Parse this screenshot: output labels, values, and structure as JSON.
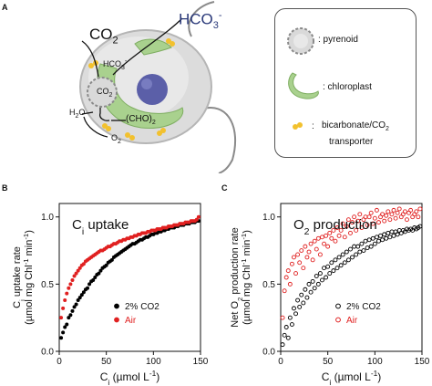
{
  "panel_a": {
    "letter": "A",
    "cell_labels": {
      "co2": "CO",
      "co2_sub": "2",
      "hco3": "HCO",
      "hco3_sub": "3",
      "hco3_sup": "-",
      "hco3_inner": "HCO",
      "hco3_inner_sub": "3",
      "hco3_inner_sup": "-",
      "co2_inner": "CO",
      "co2_inner_sub": "2",
      "h2o": "H",
      "h2o_sub": "2",
      "h2o_tail": "O",
      "cho2": "(CHO)",
      "cho2_sub": "2",
      "o2": "O",
      "o2_sub": "2"
    },
    "legend": {
      "pyrenoid": ": pyrenoid",
      "chloroplast": ": chloroplast",
      "transporter_colon": ":",
      "transporter_line1": "bicarbonate/CO",
      "transporter_sub": "2",
      "transporter_line2": "transporter"
    },
    "colors": {
      "cell": "#cfcfcf",
      "chloroplast": "#a9d18e",
      "nucleus": "#5b5fa8",
      "transporter": "#f2c12e"
    }
  },
  "chart_data": [
    {
      "panel": "B",
      "type": "scatter",
      "title": "C",
      "title_sub": "i",
      "title_tail": " uptake",
      "ylabel_line1": "C",
      "ylabel_sub": "i",
      "ylabel_tail": " uptake rate",
      "ylabel_line2": "(µmol mg Chl",
      "ylabel_line2_sup": "-1",
      "ylabel_line2_mid": " min",
      "ylabel_line2_sup2": "-1",
      "ylabel_line2_end": ")",
      "xlabel": "C",
      "xlabel_sub": "i",
      "xlabel_tail": " (µmol L",
      "xlabel_sup": "-1",
      "xlabel_end": ")",
      "xlim": [
        0,
        150
      ],
      "ylim": [
        0,
        1.1
      ],
      "xticks": [
        "0",
        "50",
        "100",
        "150"
      ],
      "yticks": [
        "0.0",
        "0.5",
        "1.0"
      ],
      "legend": [
        {
          "name": "2% CO2",
          "color": "#000000",
          "marker": "filled"
        },
        {
          "name": "Air",
          "color": "#e02020",
          "marker": "filled"
        }
      ],
      "series": [
        {
          "name": "2% CO2",
          "color": "#000000",
          "marker": "filled",
          "x": [
            2,
            4,
            6,
            8,
            10,
            12,
            14,
            16,
            18,
            20,
            22,
            24,
            26,
            28,
            30,
            32,
            34,
            36,
            38,
            40,
            42,
            44,
            46,
            48,
            50,
            52,
            54,
            56,
            58,
            60,
            62,
            64,
            66,
            68,
            70,
            72,
            74,
            76,
            78,
            80,
            82,
            84,
            86,
            88,
            90,
            92,
            94,
            96,
            98,
            100,
            102,
            104,
            106,
            108,
            110,
            112,
            114,
            116,
            118,
            120,
            122,
            124,
            126,
            128,
            130,
            132,
            134,
            136,
            138,
            140,
            142,
            144,
            146,
            148
          ],
          "y": [
            0.1,
            0.14,
            0.18,
            0.2,
            0.25,
            0.27,
            0.3,
            0.33,
            0.35,
            0.38,
            0.4,
            0.42,
            0.44,
            0.46,
            0.47,
            0.5,
            0.52,
            0.53,
            0.55,
            0.57,
            0.58,
            0.6,
            0.62,
            0.63,
            0.64,
            0.66,
            0.67,
            0.68,
            0.7,
            0.71,
            0.72,
            0.73,
            0.74,
            0.75,
            0.76,
            0.77,
            0.78,
            0.79,
            0.8,
            0.8,
            0.81,
            0.82,
            0.83,
            0.83,
            0.84,
            0.85,
            0.85,
            0.86,
            0.87,
            0.87,
            0.88,
            0.88,
            0.89,
            0.89,
            0.9,
            0.9,
            0.91,
            0.91,
            0.92,
            0.92,
            0.92,
            0.93,
            0.93,
            0.94,
            0.94,
            0.94,
            0.95,
            0.95,
            0.95,
            0.96,
            0.96,
            0.96,
            0.97,
            0.97
          ]
        },
        {
          "name": "Air",
          "color": "#e02020",
          "marker": "filled",
          "x": [
            2,
            4,
            6,
            8,
            10,
            12,
            14,
            16,
            18,
            20,
            22,
            24,
            26,
            28,
            30,
            32,
            34,
            36,
            38,
            40,
            42,
            44,
            46,
            48,
            50,
            52,
            54,
            56,
            58,
            60,
            62,
            64,
            66,
            68,
            70,
            72,
            74,
            76,
            78,
            80,
            82,
            84,
            86,
            88,
            90,
            92,
            94,
            96,
            98,
            100,
            102,
            104,
            106,
            108,
            110,
            112,
            114,
            116,
            118,
            120,
            122,
            124,
            126,
            128,
            130,
            132,
            134,
            136,
            138,
            140,
            142,
            144,
            146,
            148
          ],
          "y": [
            0.25,
            0.32,
            0.38,
            0.43,
            0.47,
            0.5,
            0.53,
            0.56,
            0.58,
            0.6,
            0.62,
            0.64,
            0.65,
            0.67,
            0.68,
            0.69,
            0.7,
            0.71,
            0.72,
            0.73,
            0.74,
            0.75,
            0.75,
            0.76,
            0.77,
            0.78,
            0.78,
            0.79,
            0.8,
            0.8,
            0.81,
            0.82,
            0.82,
            0.83,
            0.83,
            0.84,
            0.84,
            0.85,
            0.85,
            0.86,
            0.86,
            0.87,
            0.87,
            0.88,
            0.88,
            0.88,
            0.89,
            0.89,
            0.9,
            0.9,
            0.9,
            0.91,
            0.91,
            0.91,
            0.92,
            0.92,
            0.92,
            0.93,
            0.93,
            0.93,
            0.94,
            0.94,
            0.94,
            0.95,
            0.95,
            0.95,
            0.96,
            0.96,
            0.96,
            0.97,
            0.97,
            0.97,
            0.98,
            1.0
          ]
        }
      ]
    },
    {
      "panel": "C",
      "type": "scatter",
      "title": "O",
      "title_sub": "2",
      "title_tail": " production",
      "ylabel_line1": "Net O",
      "ylabel_sub": "2",
      "ylabel_tail": " production rate",
      "ylabel_line2": "(µmol mg Chl",
      "ylabel_line2_sup": "-1",
      "ylabel_line2_mid": " min",
      "ylabel_line2_sup2": "-1",
      "ylabel_line2_end": ")",
      "xlabel": "C",
      "xlabel_sub": "i",
      "xlabel_tail": " (µmol L",
      "xlabel_sup": "-1",
      "xlabel_end": ")",
      "xlim": [
        0,
        150
      ],
      "ylim": [
        0,
        1.1
      ],
      "xticks": [
        "0",
        "50",
        "100",
        "150"
      ],
      "yticks": [
        "0.0",
        "0.5",
        "1.0"
      ],
      "legend": [
        {
          "name": "2% CO2",
          "color": "#000000",
          "marker": "open"
        },
        {
          "name": "Air",
          "color": "#e02020",
          "marker": "open"
        }
      ],
      "series": [
        {
          "name": "2% CO2",
          "color": "#000000",
          "marker": "open",
          "x": [
            2,
            4,
            6,
            8,
            10,
            12,
            14,
            16,
            18,
            20,
            22,
            24,
            26,
            28,
            30,
            32,
            34,
            36,
            38,
            40,
            42,
            44,
            46,
            48,
            50,
            52,
            54,
            56,
            58,
            60,
            62,
            64,
            66,
            68,
            70,
            72,
            74,
            76,
            78,
            80,
            82,
            84,
            86,
            88,
            90,
            92,
            94,
            96,
            98,
            100,
            102,
            104,
            106,
            108,
            110,
            112,
            114,
            116,
            118,
            120,
            122,
            124,
            126,
            128,
            130,
            132,
            134,
            136,
            138,
            140,
            142,
            144,
            146,
            148
          ],
          "y": [
            0.05,
            0.12,
            0.18,
            0.1,
            0.25,
            0.2,
            0.32,
            0.28,
            0.38,
            0.33,
            0.42,
            0.36,
            0.46,
            0.4,
            0.5,
            0.44,
            0.52,
            0.47,
            0.56,
            0.5,
            0.58,
            0.53,
            0.62,
            0.55,
            0.63,
            0.58,
            0.66,
            0.6,
            0.68,
            0.62,
            0.7,
            0.64,
            0.72,
            0.66,
            0.74,
            0.68,
            0.76,
            0.7,
            0.78,
            0.72,
            0.78,
            0.74,
            0.8,
            0.75,
            0.82,
            0.77,
            0.83,
            0.78,
            0.84,
            0.8,
            0.85,
            0.82,
            0.86,
            0.83,
            0.87,
            0.84,
            0.88,
            0.85,
            0.89,
            0.86,
            0.89,
            0.87,
            0.9,
            0.88,
            0.9,
            0.89,
            0.91,
            0.9,
            0.91,
            0.9,
            0.92,
            0.91,
            0.92,
            0.93
          ]
        },
        {
          "name": "Air",
          "color": "#e02020",
          "marker": "open",
          "x": [
            2,
            4,
            6,
            8,
            10,
            12,
            14,
            16,
            18,
            20,
            22,
            24,
            26,
            28,
            30,
            32,
            34,
            36,
            38,
            40,
            42,
            44,
            46,
            48,
            50,
            52,
            54,
            56,
            58,
            60,
            62,
            64,
            66,
            68,
            70,
            72,
            74,
            76,
            78,
            80,
            82,
            84,
            86,
            88,
            90,
            92,
            94,
            96,
            98,
            100,
            102,
            104,
            106,
            108,
            110,
            112,
            114,
            116,
            118,
            120,
            122,
            124,
            126,
            128,
            130,
            132,
            134,
            136,
            138,
            140,
            142,
            144,
            146,
            148
          ],
          "y": [
            0.25,
            0.45,
            0.55,
            0.6,
            0.5,
            0.65,
            0.7,
            0.58,
            0.72,
            0.66,
            0.75,
            0.62,
            0.78,
            0.7,
            0.74,
            0.8,
            0.68,
            0.82,
            0.76,
            0.84,
            0.72,
            0.85,
            0.8,
            0.86,
            0.78,
            0.88,
            0.84,
            0.9,
            0.82,
            0.92,
            0.86,
            0.9,
            0.95,
            0.85,
            0.93,
            0.98,
            0.88,
            0.96,
            1.0,
            0.9,
            0.97,
            1.02,
            0.92,
            0.98,
            1.0,
            0.94,
            1.0,
            1.03,
            0.95,
            0.99,
            1.05,
            0.96,
            1.0,
            1.02,
            0.97,
            1.01,
            1.04,
            0.98,
            1.02,
            1.05,
            0.99,
            1.03,
            1.06,
            1.0,
            1.02,
            1.04,
            0.98,
            1.03,
            1.05,
            1.0,
            1.02,
            1.04,
            1.0,
            1.06
          ]
        }
      ]
    }
  ]
}
